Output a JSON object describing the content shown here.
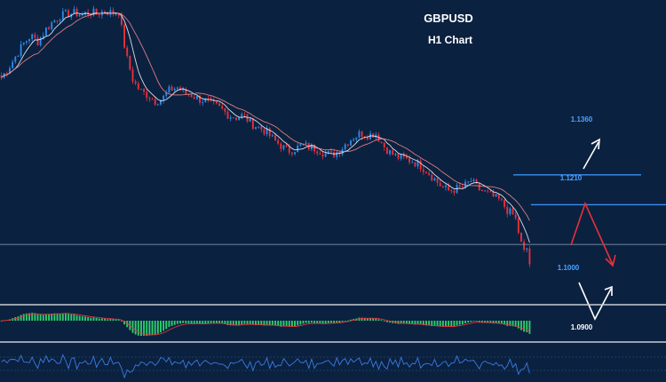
{
  "header": {
    "symbol": "GBPUSD",
    "timeframe": "H1 Chart"
  },
  "colors": {
    "background": "#0b2140",
    "candle_up": "#2a8ae8",
    "candle_down": "#e8303a",
    "level_line": "#3a8ef0",
    "level_text": "#4aa3ff",
    "support_line": "#8fa6c0",
    "ma_fast": "#ffffff",
    "ma_slow": "#ff8c8c",
    "macd_hist": "#2bcf6a",
    "macd_signal": "#e8303a",
    "rsi_line": "#3a7ae0",
    "panel_separator": "#c8ccd4",
    "arrow_bull": "#ffffff",
    "arrow_bear": "#e8303a"
  },
  "chart_data": {
    "type": "candlestick",
    "symbol": "GBPUSD",
    "timeframe": "H1",
    "ylim": [
      1.072,
      1.224
    ],
    "close_path": [
      1.185,
      1.19,
      1.196,
      1.202,
      1.206,
      1.203,
      1.209,
      1.213,
      1.216,
      1.217,
      1.2175,
      1.2165,
      1.218,
      1.217,
      1.2185,
      1.2175,
      1.218,
      1.196,
      1.183,
      1.178,
      1.176,
      1.173,
      1.1745,
      1.179,
      1.18,
      1.177,
      1.176,
      1.174,
      1.173,
      1.171,
      1.169,
      1.166,
      1.165,
      1.166,
      1.162,
      1.16,
      1.158,
      1.154,
      1.151,
      1.148,
      1.149,
      1.151,
      1.15,
      1.149,
      1.147,
      1.146,
      1.148,
      1.152,
      1.155,
      1.157,
      1.156,
      1.157,
      1.151,
      1.147,
      1.145,
      1.144,
      1.143,
      1.141,
      1.138,
      1.134,
      1.13,
      1.128,
      1.129,
      1.13,
      1.133,
      1.129,
      1.127,
      1.125,
      1.123,
      1.118,
      1.115,
      1.099,
      1.091
    ],
    "levels": [
      {
        "label": "1.1360",
        "value": 1.136
      },
      {
        "label": "1.1210",
        "value": 1.121
      },
      {
        "label": "1.1000",
        "value": 1.1
      },
      {
        "label": "1.0900",
        "value": 1.09
      }
    ],
    "support_level": 1.101,
    "grid": false,
    "indicators": [
      "moving average (fast)",
      "moving average (slow)",
      "MACD histogram with signal",
      "oscillator"
    ]
  }
}
